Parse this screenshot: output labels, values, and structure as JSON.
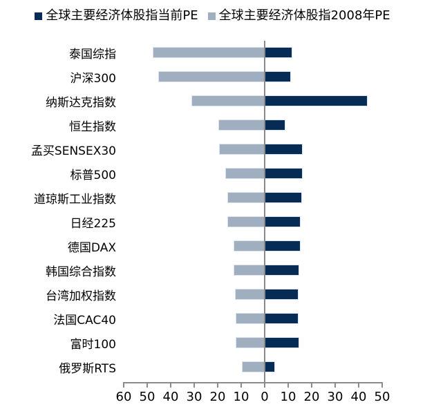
{
  "legend": {
    "items": [
      {
        "label": "全球主要经济体股指当前PE",
        "color": "#062c55"
      },
      {
        "label": "全球主要经济体股指2008年PE",
        "color": "#9fafc0"
      }
    ]
  },
  "chart_data": {
    "type": "bar",
    "orientation": "horizontal",
    "diverging": true,
    "title": "",
    "xlabel": "",
    "ylabel": "",
    "grid": false,
    "legend_position": "top-center",
    "categories": [
      "泰国综指",
      "沪深300",
      "纳斯达克指数",
      "恒生指数",
      "孟买SENSEX30",
      "标普500",
      "道琼斯工业指数",
      "日经225",
      "德国DAX",
      "韩国综合指数",
      "台湾加权指数",
      "法国CAC40",
      "富时100",
      "俄罗斯RTS"
    ],
    "series": [
      {
        "name": "全球主要经济体股指当前PE",
        "side": "right",
        "color": "#062c55",
        "values": [
          11.5,
          11,
          43.5,
          8.5,
          16,
          16,
          15.5,
          15,
          15,
          14.5,
          14,
          14,
          14.5,
          4
        ]
      },
      {
        "name": "全球主要经济体股指2008年PE",
        "side": "left",
        "color": "#9fafc0",
        "values": [
          47.5,
          45,
          31,
          19.5,
          19,
          16.5,
          15.5,
          15.5,
          13,
          13,
          12.5,
          12,
          12,
          9.5
        ]
      }
    ],
    "x_axis": {
      "tick_labels": [
        "60",
        "50",
        "40",
        "30",
        "20",
        "10",
        "0",
        "10",
        "20",
        "30",
        "40",
        "50"
      ],
      "left_max": 60,
      "right_max": 50,
      "tick_interval": 10,
      "axis_color": "#8a8a8a"
    },
    "bar_outline_color": "#dbe4ee"
  }
}
